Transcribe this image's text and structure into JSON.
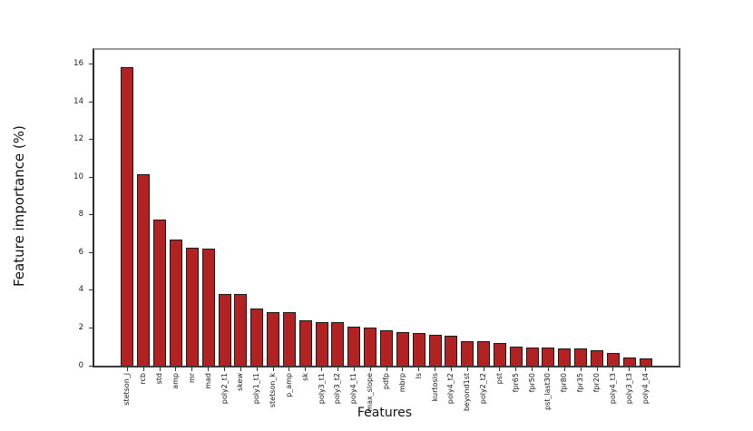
{
  "figure": {
    "background": "#ffffff"
  },
  "chart_data": {
    "type": "bar",
    "title": "",
    "xlabel": "Features",
    "ylabel": "Feature importance (%)",
    "categories": [
      "stetson_j",
      "rcb",
      "std",
      "amp",
      "mr",
      "mad",
      "poly2_t1",
      "skew",
      "poly1_t1",
      "stetson_k",
      "p_amp",
      "sk",
      "poly3_t1",
      "poly3_t2",
      "poly4_t1",
      "max_slope",
      "pdfp",
      "mbrp",
      "ls",
      "kurtosis",
      "poly4_t2",
      "beyond1st",
      "poly2_t2",
      "pst",
      "fpr65",
      "fpr50",
      "pst_last30",
      "fpr80",
      "fpr35",
      "fpr20",
      "poly4_t3",
      "poly3_t3",
      "poly4_t4"
    ],
    "values": [
      15.85,
      10.15,
      7.75,
      6.7,
      6.25,
      6.2,
      3.8,
      3.8,
      3.05,
      2.85,
      2.85,
      2.4,
      2.3,
      2.3,
      2.05,
      2.0,
      1.9,
      1.8,
      1.75,
      1.65,
      1.6,
      1.3,
      1.3,
      1.2,
      1.0,
      0.95,
      0.95,
      0.92,
      0.9,
      0.8,
      0.68,
      0.43,
      0.4
    ],
    "ylim": [
      0,
      16.75
    ],
    "yticks": [
      0,
      2,
      4,
      6,
      8,
      10,
      12,
      14,
      16
    ],
    "bar_color": "#b22222",
    "bar_edge_color": "#1a1a1a",
    "grid": false,
    "legend": false
  }
}
